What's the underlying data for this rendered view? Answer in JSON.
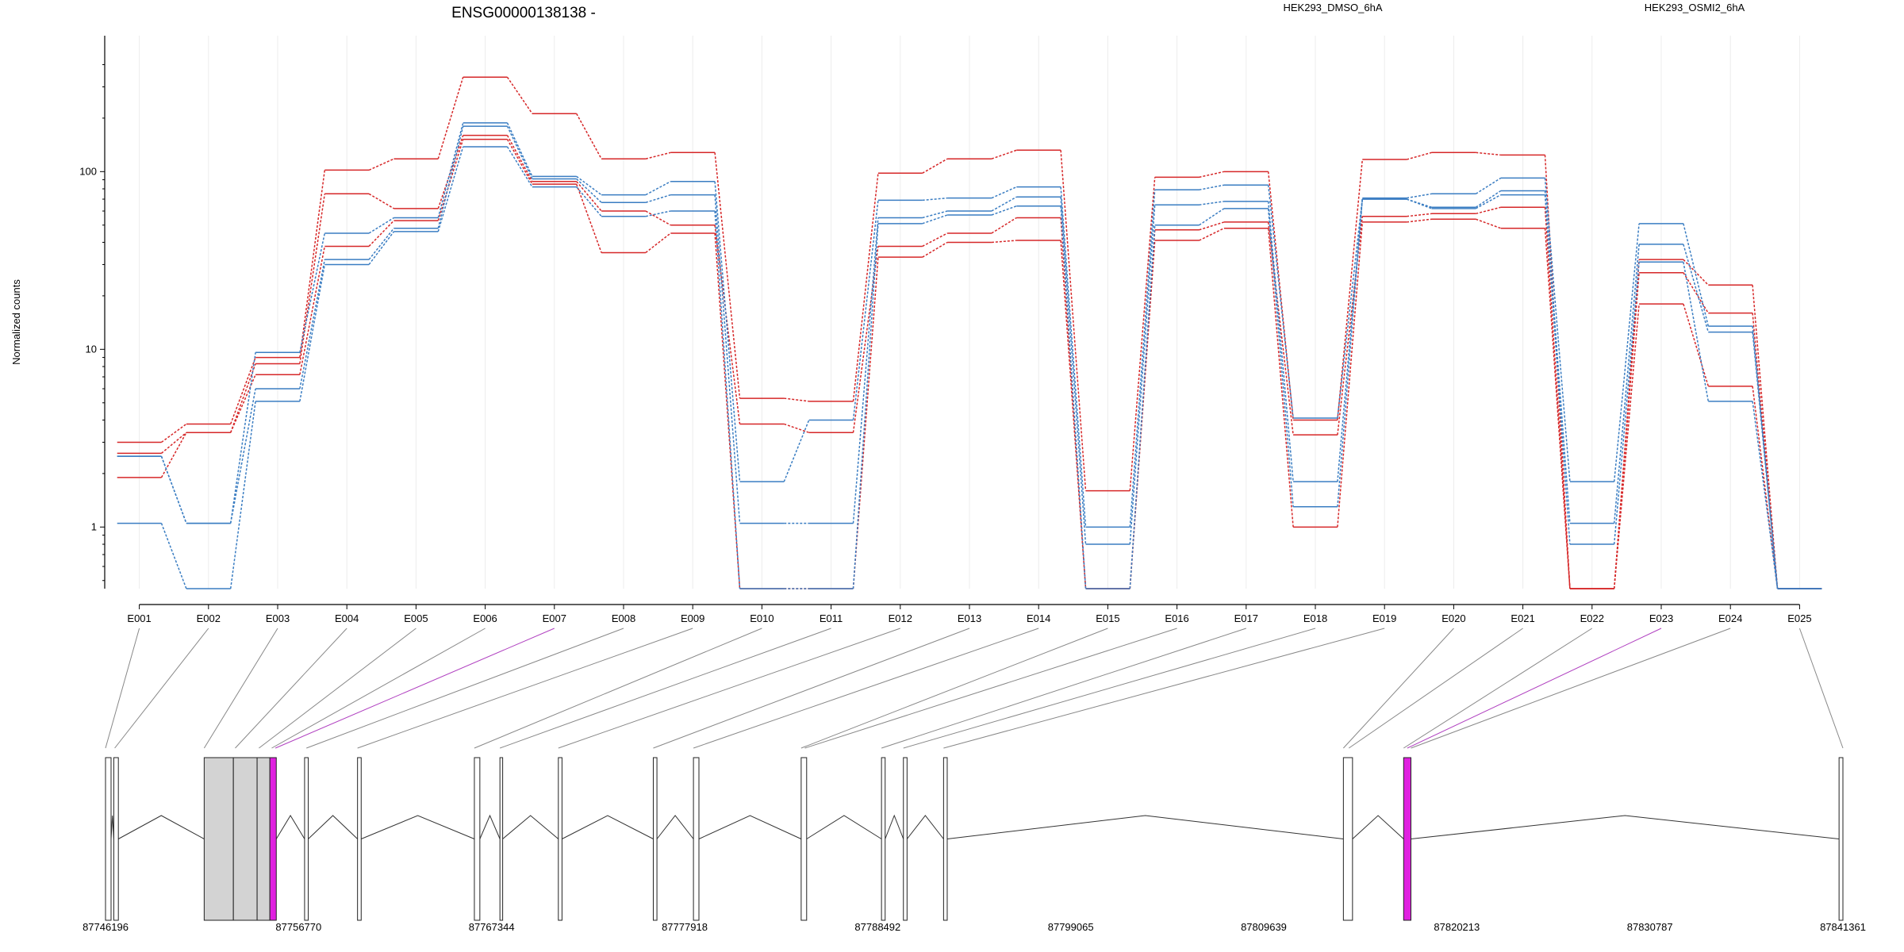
{
  "chart_data": {
    "type": "line",
    "title": "ENSG00000138138 -",
    "ylabel": "Normalized counts",
    "xlabel": "",
    "yscale": "log",
    "ylim": [
      0.45,
      450
    ],
    "yticks": [
      {
        "value": 1,
        "label": "1"
      },
      {
        "value": 10,
        "label": "10"
      },
      {
        "value": 100,
        "label": "100"
      }
    ],
    "grid": true,
    "legend_position": "top",
    "legend": [
      {
        "label": "HEK293_DMSO_6hA",
        "color": "#d62728"
      },
      {
        "label": "HEK293_OSMI2_6hA",
        "color": "#3a7dc2"
      }
    ],
    "categories": [
      "E001",
      "E002",
      "E003",
      "E004",
      "E005",
      "E006",
      "E007",
      "E008",
      "E009",
      "E010",
      "E011",
      "E012",
      "E013",
      "E014",
      "E015",
      "E016",
      "E017",
      "E018",
      "E019",
      "E020",
      "E021",
      "E022",
      "E023",
      "E024",
      "E025"
    ],
    "series": [
      {
        "group": "HEK293_DMSO_6hA",
        "color": "#d62728",
        "values": [
          3.0,
          3.8,
          9.0,
          102,
          118,
          340,
          212,
          118,
          128,
          5.3,
          5.1,
          98,
          118,
          132,
          1.6,
          93,
          100,
          4.0,
          117,
          128,
          124,
          0.45,
          32,
          23,
          0.45
        ]
      },
      {
        "group": "HEK293_DMSO_6hA",
        "color": "#d62728",
        "values": [
          2.6,
          3.4,
          8.3,
          75,
          62,
          160,
          88,
          60,
          50,
          3.8,
          3.4,
          38,
          45,
          55,
          0.45,
          47,
          52,
          3.3,
          56,
          58,
          63,
          0.45,
          27,
          16,
          0.45
        ]
      },
      {
        "group": "HEK293_DMSO_6hA",
        "color": "#d62728",
        "values": [
          1.9,
          3.4,
          7.2,
          38,
          53,
          152,
          85,
          35,
          45,
          0.45,
          0.45,
          33,
          40,
          41,
          0.45,
          41,
          48,
          1.0,
          52,
          54,
          48,
          0.45,
          18,
          6.2,
          0.45
        ]
      },
      {
        "group": "HEK293_OSMI2_6hA",
        "color": "#3a7dc2",
        "values": [
          2.5,
          1.05,
          9.6,
          45,
          55,
          188,
          94,
          74,
          88,
          1.8,
          4.0,
          69,
          71,
          82,
          1.0,
          79,
          84,
          4.1,
          71,
          75,
          92,
          1.8,
          51,
          13.5,
          0.45
        ]
      },
      {
        "group": "HEK293_OSMI2_6hA",
        "color": "#3a7dc2",
        "values": [
          2.5,
          1.05,
          6.0,
          32,
          48,
          180,
          91,
          67,
          74,
          1.05,
          1.05,
          55,
          60,
          72,
          0.8,
          65,
          68,
          1.8,
          70,
          63,
          78,
          1.05,
          39,
          12.5,
          0.45
        ]
      },
      {
        "group": "HEK293_OSMI2_6hA",
        "color": "#3a7dc2",
        "values": [
          1.05,
          0.45,
          5.1,
          30,
          46,
          138,
          82,
          56,
          60,
          0.45,
          0.45,
          51,
          57,
          64,
          0.45,
          50,
          62,
          1.3,
          70,
          62,
          74,
          0.8,
          31,
          5.1,
          0.45
        ]
      }
    ],
    "genomic_axis": {
      "tick_labels": [
        "87746196",
        "87756770",
        "87767344",
        "87777918",
        "87788492",
        "87799065",
        "87809639",
        "87820213",
        "87830787",
        "87841361"
      ],
      "exons": [
        {
          "start": 87746196,
          "end": 87746500,
          "fill": "#ffffff"
        },
        {
          "start": 87746650,
          "end": 87746900,
          "fill": "#ffffff"
        },
        {
          "start": 87751600,
          "end": 87753200,
          "fill": "#d3d3d3"
        },
        {
          "start": 87753200,
          "end": 87754500,
          "fill": "#d3d3d3"
        },
        {
          "start": 87754500,
          "end": 87755200,
          "fill": "#d3d3d3"
        },
        {
          "start": 87755200,
          "end": 87755550,
          "fill": "#e020e0"
        },
        {
          "start": 87757100,
          "end": 87757300,
          "fill": "#ffffff"
        },
        {
          "start": 87760000,
          "end": 87760200,
          "fill": "#ffffff"
        },
        {
          "start": 87766400,
          "end": 87766700,
          "fill": "#ffffff"
        },
        {
          "start": 87767800,
          "end": 87767950,
          "fill": "#ffffff"
        },
        {
          "start": 87771000,
          "end": 87771200,
          "fill": "#ffffff"
        },
        {
          "start": 87776200,
          "end": 87776400,
          "fill": "#ffffff"
        },
        {
          "start": 87778400,
          "end": 87778700,
          "fill": "#ffffff"
        },
        {
          "start": 87784300,
          "end": 87784600,
          "fill": "#ffffff"
        },
        {
          "start": 87788700,
          "end": 87788900,
          "fill": "#ffffff"
        },
        {
          "start": 87789900,
          "end": 87790100,
          "fill": "#ffffff"
        },
        {
          "start": 87792100,
          "end": 87792300,
          "fill": "#ffffff"
        },
        {
          "start": 87814000,
          "end": 87814500,
          "fill": "#ffffff"
        },
        {
          "start": 87817300,
          "end": 87817700,
          "fill": "#e020e0"
        },
        {
          "start": 87841150,
          "end": 87841361,
          "fill": "#ffffff"
        }
      ],
      "connectors": [
        {
          "exon": "E001",
          "pos": 87746196
        },
        {
          "exon": "E002",
          "pos": 87746700
        },
        {
          "exon": "E003",
          "pos": 87751600
        },
        {
          "exon": "E004",
          "pos": 87753300
        },
        {
          "exon": "E005",
          "pos": 87754600
        },
        {
          "exon": "E006",
          "pos": 87755300
        },
        {
          "exon": "E007",
          "pos": 87755500,
          "highlight": true
        },
        {
          "exon": "E008",
          "pos": 87757200
        },
        {
          "exon": "E009",
          "pos": 87760000
        },
        {
          "exon": "E010",
          "pos": 87766400
        },
        {
          "exon": "E011",
          "pos": 87767800
        },
        {
          "exon": "E012",
          "pos": 87771000
        },
        {
          "exon": "E013",
          "pos": 87776200
        },
        {
          "exon": "E014",
          "pos": 87778400
        },
        {
          "exon": "E015",
          "pos": 87784300
        },
        {
          "exon": "E016",
          "pos": 87784500
        },
        {
          "exon": "E017",
          "pos": 87788700
        },
        {
          "exon": "E018",
          "pos": 87789900
        },
        {
          "exon": "E019",
          "pos": 87792100
        },
        {
          "exon": "E020",
          "pos": 87814000
        },
        {
          "exon": "E021",
          "pos": 87814300
        },
        {
          "exon": "E022",
          "pos": 87817300
        },
        {
          "exon": "E023",
          "pos": 87817500,
          "highlight": true
        },
        {
          "exon": "E024",
          "pos": 87817700
        },
        {
          "exon": "E025",
          "pos": 87841361
        }
      ]
    }
  }
}
